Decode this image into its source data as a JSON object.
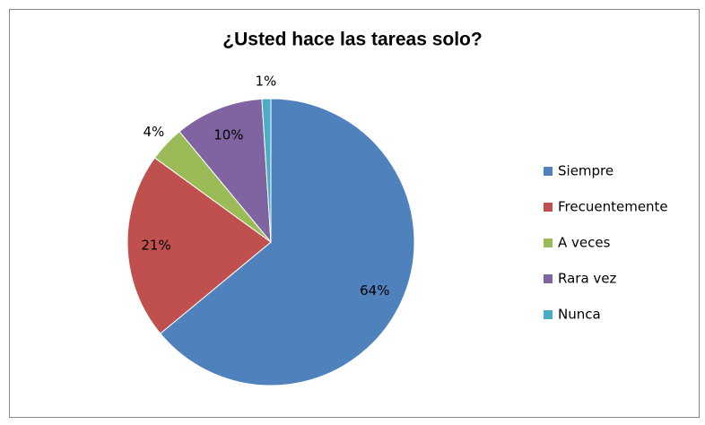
{
  "chart_data": {
    "type": "pie",
    "title": "¿Usted hace las tareas solo?",
    "categories": [
      "Siempre",
      "Frecuentemente",
      "A veces",
      "Rara vez",
      "Nunca"
    ],
    "values": [
      64,
      21,
      4,
      10,
      1
    ],
    "value_labels": [
      "64%",
      "21%",
      "4%",
      "10%",
      "1%"
    ],
    "colors": [
      "#4f81bd",
      "#c0504d",
      "#9bbb59",
      "#8064a2",
      "#4bacc6"
    ],
    "legend": "right"
  }
}
